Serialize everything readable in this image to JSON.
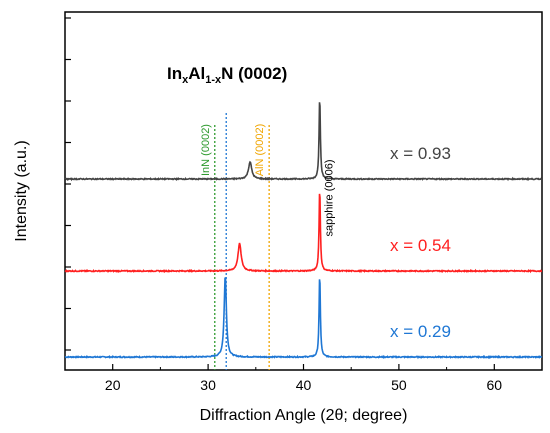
{
  "chart_data": {
    "type": "line",
    "title": "",
    "xlabel": "Diffraction Angle (2θ; degree)",
    "ylabel": "Intensity (a.u.)",
    "xlim": [
      15,
      65
    ],
    "x_ticks": [
      20,
      30,
      40,
      50,
      60
    ],
    "y_ticks_shown": false,
    "grid": false,
    "series": [
      {
        "name": "x = 0.29",
        "color": "#1f77d4",
        "baseline": 0.0,
        "offset": 2.0,
        "peaks": [
          {
            "x": 31.8,
            "height": 0.95,
            "width": 0.14
          },
          {
            "x": 41.7,
            "height": 0.97,
            "width": 0.08
          }
        ]
      },
      {
        "name": "x = 0.54",
        "color": "#ff2020",
        "baseline": 0.0,
        "offset": 1.0,
        "peaks": [
          {
            "x": 33.3,
            "height": 0.32,
            "width": 0.2
          },
          {
            "x": 41.7,
            "height": 0.97,
            "width": 0.08
          }
        ]
      },
      {
        "name": "x = 0.93",
        "color": "#444444",
        "baseline": 0.0,
        "offset": 0.0,
        "peaks": [
          {
            "x": 34.4,
            "height": 0.2,
            "width": 0.2
          },
          {
            "x": 41.7,
            "height": 0.97,
            "width": 0.08
          }
        ]
      }
    ],
    "reference_lines": [
      {
        "x": 30.7,
        "label": "InN (0002)",
        "color": "#2e9a2e"
      },
      {
        "x": 36.4,
        "label": "AlN (0002)",
        "color": "#f0a500"
      },
      {
        "x": 31.9,
        "label": "",
        "color": "#1f77d4"
      }
    ],
    "annotations": {
      "main_title": {
        "base": "In",
        "sub1": "x",
        "mid": "Al",
        "sub2": "1-x",
        "tail": "N (0002)"
      },
      "sapphire": "sapphire (0006)"
    }
  }
}
